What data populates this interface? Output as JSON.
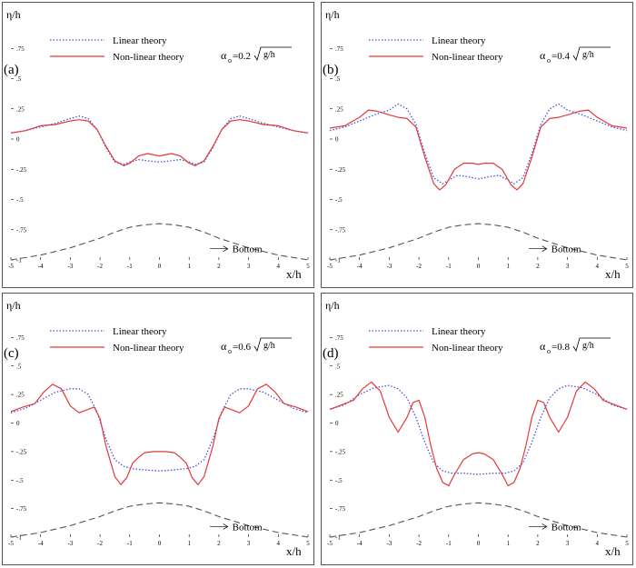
{
  "figure": {
    "y_axis_title": "η/h",
    "x_axis_title": "x/h",
    "bottom_label": "Bottom",
    "legend_linear": "Linear theory",
    "legend_nonlinear": "Non-linear theory",
    "alpha_symbol": "α",
    "alpha_subscript": "o",
    "sqrt_arg": "g/h"
  },
  "colors": {
    "linear": "#4a52d8",
    "nonlinear": "#e23a3a",
    "bottom": "#555555",
    "frame": "#555555"
  },
  "chart_data": [
    {
      "type": "line",
      "panel_label": "(a)",
      "alpha_value": "=0.2",
      "xlim": [
        -5,
        5
      ],
      "ylim": [
        -1,
        1
      ],
      "x_ticks": [
        -5,
        -4,
        -3,
        -2,
        -1,
        0,
        1,
        2,
        3,
        4,
        5
      ],
      "y_ticks": [
        -1,
        -0.75,
        -0.5,
        -0.25,
        0,
        0.25,
        0.5,
        0.75
      ],
      "series": [
        {
          "name": "Linear theory",
          "style": "dotted",
          "x": [
            -5,
            -4.5,
            -4,
            -3.5,
            -3,
            -2.7,
            -2.4,
            -2.1,
            -1.8,
            -1.5,
            -1.2,
            -1,
            -0.7,
            -0.4,
            0,
            0.4,
            0.7,
            1,
            1.2,
            1.5,
            1.8,
            2.1,
            2.4,
            2.7,
            3,
            3.5,
            4,
            4.5,
            5
          ],
          "y": [
            0.05,
            0.07,
            0.1,
            0.13,
            0.17,
            0.19,
            0.17,
            0.08,
            -0.07,
            -0.19,
            -0.21,
            -0.19,
            -0.17,
            -0.18,
            -0.19,
            -0.18,
            -0.17,
            -0.19,
            -0.21,
            -0.19,
            -0.07,
            0.08,
            0.17,
            0.19,
            0.17,
            0.13,
            0.1,
            0.07,
            0.05
          ]
        },
        {
          "name": "Non-linear theory",
          "style": "solid",
          "x": [
            -5,
            -4.5,
            -4,
            -3.5,
            -3,
            -2.7,
            -2.4,
            -2.1,
            -1.8,
            -1.5,
            -1.2,
            -1,
            -0.7,
            -0.4,
            0,
            0.4,
            0.7,
            1,
            1.2,
            1.5,
            1.8,
            2.1,
            2.4,
            2.7,
            3,
            3.5,
            4,
            4.5,
            5
          ],
          "y": [
            0.05,
            0.07,
            0.11,
            0.12,
            0.15,
            0.16,
            0.15,
            0.08,
            -0.06,
            -0.18,
            -0.22,
            -0.2,
            -0.14,
            -0.12,
            -0.14,
            -0.12,
            -0.14,
            -0.2,
            -0.22,
            -0.18,
            -0.06,
            0.08,
            0.15,
            0.16,
            0.15,
            0.12,
            0.11,
            0.07,
            0.05
          ]
        },
        {
          "name": "Bottom",
          "style": "dashed",
          "x": [
            -5,
            -4,
            -3,
            -2,
            -1.5,
            -1,
            -0.5,
            0,
            0.5,
            1,
            1.5,
            2,
            3,
            4,
            5
          ],
          "y": [
            -1,
            -0.96,
            -0.9,
            -0.82,
            -0.77,
            -0.73,
            -0.71,
            -0.7,
            -0.71,
            -0.73,
            -0.77,
            -0.82,
            -0.9,
            -0.96,
            -1
          ]
        }
      ]
    },
    {
      "type": "line",
      "panel_label": "(b)",
      "alpha_value": "=0.4",
      "xlim": [
        -5,
        5
      ],
      "ylim": [
        -1,
        1
      ],
      "x_ticks": [
        -5,
        -4,
        -3,
        -2,
        -1,
        0,
        1,
        2,
        3,
        4,
        5
      ],
      "y_ticks": [
        -1,
        -0.75,
        -0.5,
        -0.25,
        0,
        0.25,
        0.5,
        0.75
      ],
      "series": [
        {
          "name": "Linear theory",
          "style": "dotted",
          "x": [
            -5,
            -4.5,
            -4,
            -3.5,
            -3,
            -2.7,
            -2.4,
            -2.1,
            -1.8,
            -1.5,
            -1.2,
            -1,
            -0.7,
            -0.4,
            0,
            0.4,
            0.7,
            1,
            1.2,
            1.5,
            1.8,
            2.1,
            2.4,
            2.7,
            3,
            3.5,
            4,
            4.5,
            5
          ],
          "y": [
            0.07,
            0.1,
            0.15,
            0.2,
            0.24,
            0.29,
            0.25,
            0.12,
            -0.12,
            -0.32,
            -0.37,
            -0.34,
            -0.3,
            -0.31,
            -0.33,
            -0.31,
            -0.3,
            -0.34,
            -0.37,
            -0.32,
            -0.12,
            0.12,
            0.25,
            0.29,
            0.24,
            0.2,
            0.15,
            0.1,
            0.07
          ]
        },
        {
          "name": "Non-linear theory",
          "style": "solid",
          "x": [
            -5,
            -4.5,
            -4,
            -3.7,
            -3.4,
            -3,
            -2.7,
            -2.4,
            -2.1,
            -1.8,
            -1.5,
            -1.3,
            -1.1,
            -0.8,
            -0.5,
            -0.2,
            0,
            0.2,
            0.5,
            0.8,
            1.1,
            1.3,
            1.5,
            1.8,
            2.1,
            2.4,
            2.7,
            3,
            3.4,
            3.7,
            4,
            4.5,
            5
          ],
          "y": [
            0.09,
            0.11,
            0.18,
            0.24,
            0.23,
            0.2,
            0.18,
            0.17,
            0.1,
            -0.15,
            -0.37,
            -0.42,
            -0.38,
            -0.25,
            -0.2,
            -0.2,
            -0.21,
            -0.2,
            -0.2,
            -0.25,
            -0.38,
            -0.42,
            -0.37,
            -0.15,
            0.1,
            0.17,
            0.18,
            0.2,
            0.23,
            0.24,
            0.18,
            0.11,
            0.09
          ]
        },
        {
          "name": "Bottom",
          "style": "dashed",
          "x": [
            -5,
            -4,
            -3,
            -2,
            -1.5,
            -1,
            -0.5,
            0,
            0.5,
            1,
            1.5,
            2,
            3,
            4,
            5
          ],
          "y": [
            -1,
            -0.96,
            -0.9,
            -0.82,
            -0.77,
            -0.73,
            -0.71,
            -0.7,
            -0.71,
            -0.73,
            -0.77,
            -0.82,
            -0.9,
            -0.96,
            -1
          ]
        }
      ]
    },
    {
      "type": "line",
      "panel_label": "(c)",
      "alpha_value": "=0.6",
      "xlim": [
        -5,
        5
      ],
      "ylim": [
        -1,
        1
      ],
      "x_ticks": [
        -5,
        -4,
        -3,
        -2,
        -1,
        0,
        1,
        2,
        3,
        4,
        5
      ],
      "y_ticks": [
        -1,
        -0.75,
        -0.5,
        -0.25,
        0,
        0.25,
        0.5,
        0.75
      ],
      "series": [
        {
          "name": "Linear theory",
          "style": "dotted",
          "x": [
            -5,
            -4.5,
            -4,
            -3.5,
            -3,
            -2.7,
            -2.4,
            -2.1,
            -1.8,
            -1.5,
            -1.2,
            -0.9,
            -0.5,
            0,
            0.5,
            0.9,
            1.2,
            1.5,
            1.8,
            2.1,
            2.4,
            2.7,
            3,
            3.5,
            4,
            4.5,
            5
          ],
          "y": [
            0.09,
            0.13,
            0.2,
            0.27,
            0.3,
            0.3,
            0.25,
            0.1,
            -0.14,
            -0.32,
            -0.38,
            -0.4,
            -0.41,
            -0.42,
            -0.41,
            -0.4,
            -0.38,
            -0.32,
            -0.14,
            0.1,
            0.25,
            0.3,
            0.3,
            0.27,
            0.2,
            0.13,
            0.09
          ]
        },
        {
          "name": "Non-linear theory",
          "style": "solid",
          "x": [
            -5,
            -4.6,
            -4.2,
            -3.9,
            -3.6,
            -3.3,
            -3,
            -2.7,
            -2.4,
            -2.2,
            -2,
            -1.8,
            -1.5,
            -1.3,
            -1.1,
            -0.9,
            -0.7,
            -0.5,
            -0.2,
            0,
            0.2,
            0.5,
            0.7,
            0.9,
            1.1,
            1.3,
            1.5,
            1.8,
            2,
            2.2,
            2.4,
            2.7,
            3,
            3.3,
            3.6,
            3.9,
            4.2,
            4.6,
            5
          ],
          "y": [
            0.1,
            0.14,
            0.17,
            0.27,
            0.34,
            0.3,
            0.15,
            0.09,
            0.12,
            0.14,
            0.04,
            -0.2,
            -0.47,
            -0.54,
            -0.48,
            -0.35,
            -0.3,
            -0.26,
            -0.25,
            -0.25,
            -0.25,
            -0.26,
            -0.3,
            -0.35,
            -0.48,
            -0.54,
            -0.47,
            -0.2,
            0.04,
            0.14,
            0.12,
            0.09,
            0.15,
            0.3,
            0.34,
            0.27,
            0.17,
            0.14,
            0.1
          ]
        },
        {
          "name": "Bottom",
          "style": "dashed",
          "x": [
            -5,
            -4,
            -3,
            -2,
            -1.5,
            -1,
            -0.5,
            0,
            0.5,
            1,
            1.5,
            2,
            3,
            4,
            5
          ],
          "y": [
            -1,
            -0.96,
            -0.9,
            -0.82,
            -0.77,
            -0.73,
            -0.71,
            -0.7,
            -0.71,
            -0.73,
            -0.77,
            -0.82,
            -0.9,
            -0.96,
            -1
          ]
        }
      ]
    },
    {
      "type": "line",
      "panel_label": "(d)",
      "alpha_value": "=0.8",
      "xlim": [
        -5,
        5
      ],
      "ylim": [
        -1,
        1
      ],
      "x_ticks": [
        -5,
        -4,
        -3,
        -2,
        -1,
        0,
        1,
        2,
        3,
        4,
        5
      ],
      "y_ticks": [
        -1,
        -0.75,
        -0.5,
        -0.25,
        0,
        0.25,
        0.5,
        0.75
      ],
      "series": [
        {
          "name": "Linear theory",
          "style": "dotted",
          "x": [
            -5,
            -4.5,
            -4,
            -3.5,
            -3,
            -2.7,
            -2.4,
            -2.1,
            -1.8,
            -1.5,
            -1.2,
            -0.9,
            -0.5,
            0,
            0.5,
            0.9,
            1.2,
            1.5,
            1.8,
            2.1,
            2.4,
            2.7,
            3,
            3.5,
            4,
            4.5,
            5
          ],
          "y": [
            0.12,
            0.16,
            0.25,
            0.31,
            0.33,
            0.3,
            0.22,
            0.05,
            -0.17,
            -0.35,
            -0.42,
            -0.44,
            -0.44,
            -0.45,
            -0.44,
            -0.44,
            -0.42,
            -0.35,
            -0.17,
            0.05,
            0.22,
            0.3,
            0.33,
            0.31,
            0.25,
            0.16,
            0.12
          ]
        },
        {
          "name": "Non-linear theory",
          "style": "solid",
          "x": [
            -5,
            -4.6,
            -4.2,
            -3.9,
            -3.6,
            -3.3,
            -3,
            -2.7,
            -2.4,
            -2.2,
            -2,
            -1.8,
            -1.6,
            -1.4,
            -1.2,
            -1,
            -0.8,
            -0.5,
            -0.2,
            0,
            0.2,
            0.5,
            0.8,
            1,
            1.2,
            1.4,
            1.6,
            1.8,
            2,
            2.2,
            2.4,
            2.7,
            3,
            3.3,
            3.6,
            3.9,
            4.2,
            4.6,
            5
          ],
          "y": [
            0.12,
            0.16,
            0.2,
            0.3,
            0.36,
            0.28,
            0.05,
            -0.08,
            0.05,
            0.18,
            0.2,
            0.05,
            -0.2,
            -0.4,
            -0.52,
            -0.55,
            -0.45,
            -0.32,
            -0.27,
            -0.26,
            -0.27,
            -0.32,
            -0.45,
            -0.55,
            -0.52,
            -0.4,
            -0.2,
            0.05,
            0.2,
            0.18,
            0.05,
            -0.08,
            0.05,
            0.28,
            0.36,
            0.3,
            0.2,
            0.16,
            0.12
          ]
        },
        {
          "name": "Bottom",
          "style": "dashed",
          "x": [
            -5,
            -4,
            -3,
            -2,
            -1.5,
            -1,
            -0.5,
            0,
            0.5,
            1,
            1.5,
            2,
            3,
            4,
            5
          ],
          "y": [
            -1,
            -0.96,
            -0.9,
            -0.82,
            -0.77,
            -0.73,
            -0.71,
            -0.7,
            -0.71,
            -0.73,
            -0.77,
            -0.82,
            -0.9,
            -0.96,
            -1
          ]
        }
      ]
    }
  ]
}
